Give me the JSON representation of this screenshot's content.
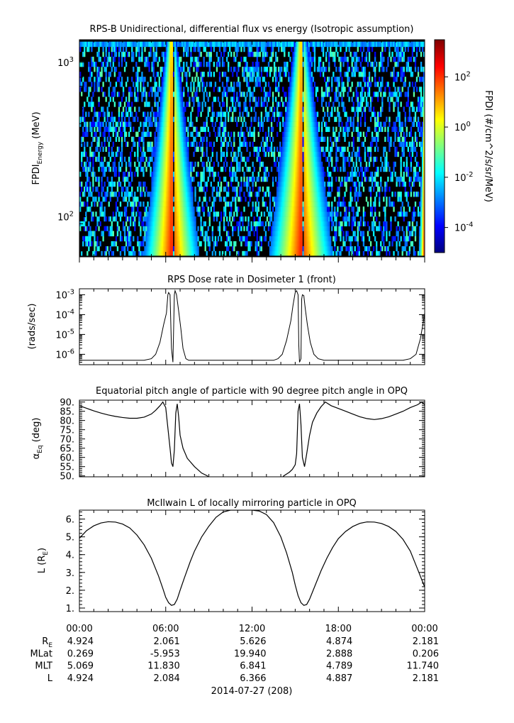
{
  "chart_data": [
    {
      "type": "heatmap",
      "title": "RPS-B  Unidirectional, differential flux vs energy (Isotropic assumption)",
      "ylabel": "FPDI",
      "ylabel_sub": "Energy",
      "ylabel_unit": " (MeV)",
      "yscale": "log",
      "ylim": [
        55,
        1400
      ],
      "yticks": [
        {
          "value": 100,
          "label": "10",
          "exp": "2"
        },
        {
          "value": 1000,
          "label": "10",
          "exp": "3"
        }
      ],
      "energy_channels_mev": [
        58,
        62,
        67,
        72,
        78,
        84,
        90,
        97,
        104,
        112,
        121,
        130,
        140,
        151,
        163,
        175,
        189,
        203,
        219,
        236,
        254,
        274,
        295,
        318,
        342,
        369,
        397,
        428,
        461,
        497,
        535,
        577,
        621,
        669,
        721,
        777,
        837,
        902,
        972,
        1047,
        1128,
        1215,
        1310
      ],
      "time_range_hours": [
        0,
        24
      ],
      "colorbar": {
        "label": "FPDI (#/cm^2/s/sr/MeV)",
        "scale": "log",
        "range": [
          1e-05,
          3000.0
        ],
        "ticks": [
          {
            "value": 100,
            "label": "10",
            "exp": "2"
          },
          {
            "value": 1,
            "label": "10",
            "exp": "0"
          },
          {
            "value": 0.01,
            "label": "10",
            "exp": "-2"
          },
          {
            "value": 0.0001,
            "label": "10",
            "exp": "-4"
          }
        ],
        "colors": [
          "#00007f",
          "#0000ff",
          "#007fff",
          "#00ffff",
          "#7fff7f",
          "#ffff00",
          "#ff7f00",
          "#ff0000",
          "#7f0000"
        ]
      },
      "flux_bands": [
        {
          "center_hour": 6.4,
          "edge_hour_at_low_energy": 4.5,
          "edge_hour_at_high_energy": 6.0,
          "gap_hour": 6.55
        },
        {
          "center_hour": 15.4,
          "edge_hour_at_low_energy": 13.2,
          "edge_hour_at_high_energy": 14.9,
          "gap_hour": 15.55
        },
        {
          "center_hour": 24.0,
          "edge_hour_at_low_energy": 23.6,
          "edge_hour_at_high_energy": 24.0
        }
      ]
    },
    {
      "type": "line",
      "title": "RPS  Dose rate in Dosimeter 1 (front)",
      "ylabel": "(rads/sec)",
      "yscale": "log",
      "ylim": [
        3e-07,
        0.002
      ],
      "yticks": [
        {
          "value": 0.001,
          "label": "10",
          "exp": "-3"
        },
        {
          "value": 0.0001,
          "label": "10",
          "exp": "-4"
        },
        {
          "value": 1e-05,
          "label": "10",
          "exp": "-5"
        },
        {
          "value": 1e-06,
          "label": "10",
          "exp": "-6"
        }
      ],
      "x_hours": [
        0,
        1,
        2,
        3,
        4,
        4.5,
        5,
        5.3,
        5.6,
        5.85,
        6.05,
        6.15,
        6.2,
        6.3,
        6.4,
        6.5,
        6.6,
        6.65,
        6.75,
        6.9,
        7.05,
        7.2,
        7.4,
        7.6,
        8,
        9,
        10,
        11,
        12,
        13,
        13.5,
        13.8,
        14.1,
        14.4,
        14.7,
        14.85,
        15.0,
        15.1,
        15.2,
        15.25,
        15.3,
        15.4,
        15.45,
        15.5,
        15.6,
        15.7,
        15.85,
        16.05,
        16.3,
        16.6,
        17,
        18,
        19,
        20,
        21,
        22,
        22.5,
        23,
        23.4,
        23.7,
        23.9,
        24
      ],
      "values": [
        5e-07,
        5e-07,
        5e-07,
        5e-07,
        5e-07,
        5e-07,
        6e-07,
        1e-06,
        4e-06,
        3e-05,
        0.00012,
        0.001,
        0.0013,
        0.001,
        2e-06,
        4e-07,
        0.001,
        0.0016,
        0.001,
        0.00015,
        2e-05,
        2e-06,
        6e-07,
        5e-07,
        5e-07,
        5e-07,
        5e-07,
        5e-07,
        5e-07,
        5e-07,
        5e-07,
        6e-07,
        1e-06,
        5e-06,
        5e-05,
        0.0003,
        0.0013,
        0.0016,
        0.001,
        3e-06,
        4e-07,
        6e-07,
        0.0006,
        0.001,
        0.0009,
        0.0002,
        3e-05,
        4e-06,
        1e-06,
        6e-07,
        5e-07,
        5e-07,
        5e-07,
        5e-07,
        5e-07,
        5e-07,
        5e-07,
        6e-07,
        1e-06,
        6e-06,
        4e-05,
        0.00012
      ]
    },
    {
      "type": "line",
      "title": "Equatorial pitch angle of particle with 90 degree pitch angle in OPQ",
      "ylabel": "α",
      "ylabel_sub": "Eq",
      "ylabel_unit": " (deg)",
      "ylim": [
        49.5,
        91
      ],
      "yticks": [
        {
          "value": 90,
          "label": "90."
        },
        {
          "value": 85,
          "label": "85."
        },
        {
          "value": 80,
          "label": "80."
        },
        {
          "value": 75,
          "label": "75."
        },
        {
          "value": 70,
          "label": "70."
        },
        {
          "value": 65,
          "label": "65."
        },
        {
          "value": 60,
          "label": "60."
        },
        {
          "value": 55,
          "label": "55."
        },
        {
          "value": 50,
          "label": "50."
        }
      ],
      "x_hours": [
        0,
        0.5,
        1,
        1.5,
        2,
        2.5,
        3,
        3.5,
        4,
        4.5,
        5,
        5.3,
        5.6,
        5.8,
        6.0,
        6.15,
        6.3,
        6.4,
        6.5,
        6.6,
        6.7,
        6.8,
        6.9,
        7.0,
        7.2,
        7.5,
        8,
        8.5,
        8.9,
        9,
        12,
        14.1,
        14.2,
        14.4,
        14.6,
        14.8,
        15.0,
        15.1,
        15.2,
        15.3,
        15.4,
        15.5,
        15.65,
        15.8,
        16.0,
        16.2,
        16.5,
        16.8,
        17.1,
        17.5,
        18,
        18.5,
        19,
        19.5,
        20,
        20.5,
        21,
        21.5,
        22,
        22.5,
        23,
        23.5,
        23.8,
        24
      ],
      "values": [
        88,
        86.6,
        85.2,
        84,
        83,
        82.2,
        81.6,
        81.2,
        81.2,
        81.8,
        83.5,
        85.5,
        88,
        90,
        87,
        76,
        65,
        57,
        55,
        64,
        84,
        89,
        82,
        72,
        65,
        59.5,
        55,
        51.5,
        50,
        49,
        49,
        49,
        50,
        51,
        52,
        53.5,
        56,
        62,
        85,
        89,
        78,
        60,
        55,
        62,
        72,
        79,
        84,
        87.5,
        90,
        88,
        86.5,
        85,
        83.5,
        82,
        81,
        80.5,
        81,
        82,
        83.5,
        85,
        87,
        88.5,
        90,
        88.5
      ]
    },
    {
      "type": "line",
      "title": "McIlwain L of locally mirroring particle in OPQ",
      "ylabel": "L (R",
      "ylabel_sub": "E",
      "ylabel_unit": ")",
      "ylim": [
        0.8,
        6.5
      ],
      "yticks": [
        {
          "value": 6,
          "label": "6."
        },
        {
          "value": 5,
          "label": "5."
        },
        {
          "value": 4,
          "label": "4."
        },
        {
          "value": 3,
          "label": "3."
        },
        {
          "value": 2,
          "label": "2."
        },
        {
          "value": 1,
          "label": "1."
        }
      ],
      "x_hours": [
        0,
        0.5,
        1,
        1.5,
        2,
        2.5,
        3,
        3.5,
        4,
        4.5,
        5,
        5.5,
        5.8,
        6.0,
        6.2,
        6.4,
        6.6,
        6.8,
        7.0,
        7.3,
        7.7,
        8,
        8.5,
        9,
        9.5,
        10,
        10.5,
        11,
        11.5,
        12,
        12.5,
        13,
        13.5,
        14,
        14.4,
        14.8,
        15.0,
        15.2,
        15.4,
        15.6,
        15.8,
        16.0,
        16.4,
        16.8,
        17.2,
        17.6,
        18,
        18.5,
        19,
        19.5,
        20,
        20.5,
        21,
        21.5,
        22,
        22.5,
        23,
        23.5,
        24
      ],
      "values": [
        4.924,
        5.35,
        5.62,
        5.78,
        5.85,
        5.83,
        5.72,
        5.5,
        5.1,
        4.55,
        3.8,
        2.8,
        2.1,
        1.6,
        1.3,
        1.15,
        1.2,
        1.5,
        2.0,
        2.7,
        3.6,
        4.2,
        5.0,
        5.6,
        6.1,
        6.4,
        6.5,
        6.5,
        6.5,
        6.5,
        6.45,
        6.25,
        5.8,
        5.0,
        4.1,
        3.0,
        2.3,
        1.7,
        1.3,
        1.15,
        1.2,
        1.5,
        2.3,
        3.1,
        3.8,
        4.4,
        4.9,
        5.3,
        5.58,
        5.76,
        5.84,
        5.83,
        5.75,
        5.58,
        5.3,
        4.85,
        4.2,
        3.2,
        2.181
      ]
    }
  ],
  "time_axis": {
    "ticks": [
      {
        "hour": 0,
        "label": "00:00"
      },
      {
        "hour": 6,
        "label": "06:00"
      },
      {
        "hour": 12,
        "label": "12:00"
      },
      {
        "hour": 18,
        "label": "18:00"
      },
      {
        "hour": 24,
        "label": "00:00"
      }
    ],
    "minor_every_hours": 1,
    "date_label": "2014-07-27 (208)"
  },
  "ephemeris": [
    {
      "name": "R",
      "sub": "E",
      "values": [
        "4.924",
        "2.061",
        "5.626",
        "4.874",
        "2.181"
      ]
    },
    {
      "name": "MLat",
      "sub": "",
      "values": [
        "0.269",
        "-5.953",
        "19.940",
        "2.888",
        "0.206"
      ]
    },
    {
      "name": "MLT",
      "sub": "",
      "values": [
        "5.069",
        "11.830",
        "6.841",
        "4.789",
        "11.740"
      ]
    },
    {
      "name": "L",
      "sub": "",
      "values": [
        "4.924",
        "2.084",
        "6.366",
        "4.887",
        "2.181"
      ]
    }
  ]
}
